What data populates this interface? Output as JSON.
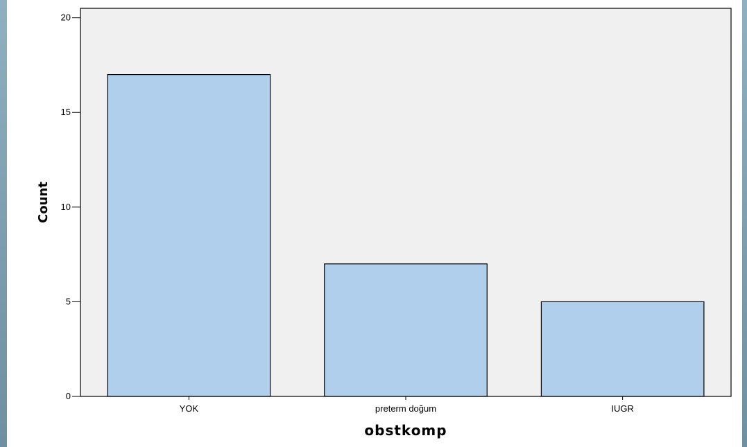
{
  "chart_data": {
    "type": "bar",
    "categories": [
      "YOK",
      "preterm doğum",
      "IUGR"
    ],
    "values": [
      17,
      7,
      5
    ],
    "xlabel": "obstkomp",
    "ylabel": "Count",
    "ylim": [
      0,
      20.5
    ],
    "yticks": [
      0,
      5,
      10,
      15,
      20
    ],
    "grid": false,
    "colors": {
      "plot_background": "#f0f0f0",
      "bar_fill": "#afcfed",
      "bar_stroke": "#000000",
      "page_background": "#ffffff",
      "frame": "#7f9fb0"
    }
  }
}
